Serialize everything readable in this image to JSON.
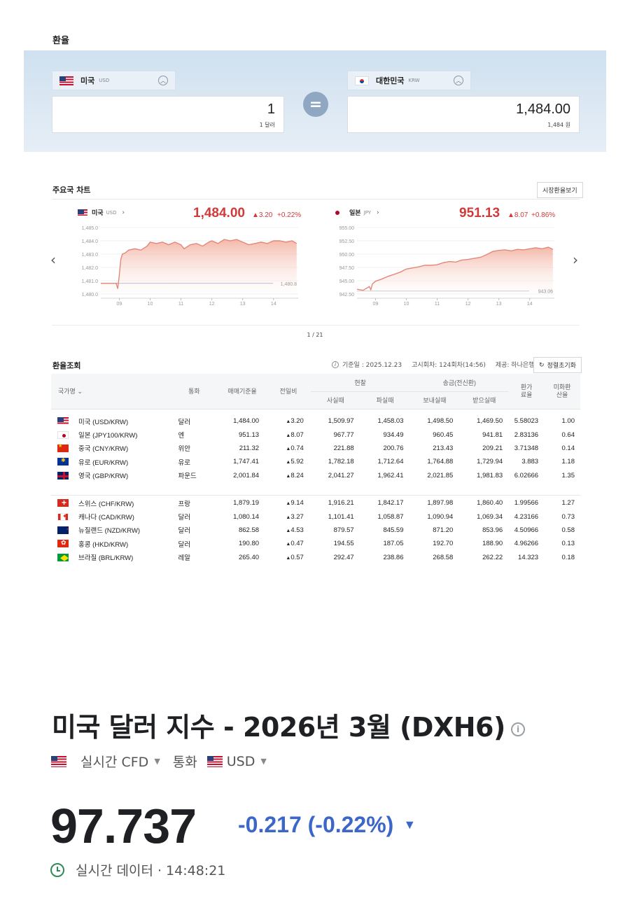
{
  "converter": {
    "title": "환율",
    "from": {
      "country": "미국",
      "code": "USD",
      "amount": "1",
      "amount_text": "1 달러"
    },
    "to": {
      "country": "대한민국",
      "code": "KRW",
      "amount": "1,484.00",
      "amount_text": "1,484 원"
    },
    "equals_icon": "equals-icon",
    "chevron_icon": "chevron-up-icon"
  },
  "charts_section": {
    "title": "주요국 차트",
    "market_button": "시장환율보기",
    "pager": "1 / 21",
    "prev_icon": "chevron-left-icon",
    "next_icon": "chevron-right-icon"
  },
  "chart_data": [
    {
      "type": "area",
      "title": "미국",
      "code": "USD",
      "price": "1,484.00",
      "change": "▲3.20",
      "change_pct": "+0.22%",
      "y_ticks": [
        "1,485.0",
        "1,484.0",
        "1,483.0",
        "1,482.0",
        "1,481.0",
        "1,480.0"
      ],
      "x_ticks": [
        "09",
        "10",
        "11",
        "12",
        "13",
        "14"
      ],
      "ylim": [
        1480.0,
        1485.0
      ],
      "xlim": [
        8.4,
        14.8
      ],
      "reference_label": "1,480.8",
      "reference_value": 1480.8,
      "series": [
        {
          "x": [
            8.4,
            8.9,
            8.95,
            9.0,
            9.05,
            9.1,
            9.2,
            9.3,
            9.5,
            9.7,
            9.9,
            10.0,
            10.2,
            10.4,
            10.6,
            10.8,
            11.0,
            11.1,
            11.3,
            11.5,
            11.7,
            11.9,
            12.0,
            12.2,
            12.4,
            12.6,
            12.8,
            13.0,
            13.2,
            13.4,
            13.6,
            13.8,
            14.0,
            14.2,
            14.4,
            14.6,
            14.75
          ],
          "y": [
            1480.8,
            1480.8,
            1480.4,
            1481.4,
            1482.6,
            1483.0,
            1483.1,
            1483.3,
            1483.4,
            1483.3,
            1483.6,
            1483.9,
            1483.8,
            1483.9,
            1483.7,
            1483.9,
            1483.7,
            1483.4,
            1483.7,
            1483.8,
            1483.6,
            1483.9,
            1484.0,
            1483.8,
            1484.1,
            1484.0,
            1484.1,
            1483.9,
            1483.7,
            1483.8,
            1483.9,
            1483.8,
            1484.0,
            1484.0,
            1483.9,
            1484.0,
            1483.8
          ]
        }
      ]
    },
    {
      "type": "area",
      "title": "일본",
      "code": "JPY",
      "price": "951.13",
      "change": "▲8.07",
      "change_pct": "+0.86%",
      "y_ticks": [
        "955.00",
        "952.50",
        "950.00",
        "947.50",
        "945.00",
        "942.50"
      ],
      "x_ticks": [
        "09",
        "10",
        "11",
        "12",
        "13",
        "14"
      ],
      "ylim": [
        942.5,
        955.0
      ],
      "xlim": [
        8.4,
        14.8
      ],
      "reference_label": "943.06",
      "reference_value": 943.06,
      "series": [
        {
          "x": [
            8.4,
            8.6,
            8.8,
            8.85,
            8.9,
            9.0,
            9.2,
            9.4,
            9.6,
            9.8,
            10.0,
            10.2,
            10.4,
            10.6,
            10.8,
            11.0,
            11.2,
            11.4,
            11.6,
            11.8,
            12.0,
            12.2,
            12.4,
            12.6,
            12.8,
            13.0,
            13.2,
            13.4,
            13.6,
            13.8,
            14.0,
            14.2,
            14.4,
            14.6,
            14.75
          ],
          "y": [
            943.4,
            943.2,
            943.9,
            943.3,
            944.4,
            944.9,
            945.3,
            945.8,
            946.2,
            946.6,
            947.2,
            947.4,
            947.6,
            947.9,
            947.9,
            948.0,
            948.4,
            948.6,
            948.5,
            948.9,
            949.0,
            949.2,
            949.4,
            949.9,
            950.5,
            950.7,
            950.8,
            950.6,
            950.9,
            950.8,
            951.0,
            951.2,
            951.0,
            951.3,
            950.9
          ]
        }
      ]
    }
  ],
  "table": {
    "title": "환율조회",
    "info_icon": "info-icon",
    "base_date": "기준일 : 2025.12.23",
    "notice": "고시회차: 124회차(14:56)",
    "provider": "제공: 하나은행",
    "refresh_button": "정렬초기화",
    "headers": {
      "country": "국가명",
      "currency": "통화",
      "base_rate": "매매기준율",
      "change": "전일비",
      "cash": "현찰",
      "cash_buy": "사실때",
      "cash_sell": "파실때",
      "wire": "송금(전신환)",
      "wire_send": "보내실때",
      "wire_recv": "받으실때",
      "commission": "환가료율",
      "usd_rate": "미화환산율"
    },
    "group1": [
      {
        "flag": "f-us",
        "name": "미국 (USD/KRW)",
        "currency": "달러",
        "base": "1,484.00",
        "change": "3.20",
        "cash_buy": "1,509.97",
        "cash_sell": "1,458.03",
        "send": "1,498.50",
        "recv": "1,469.50",
        "comm": "5.58023",
        "usd": "1.00"
      },
      {
        "flag": "f-jp",
        "name": "일본 (JPY100/KRW)",
        "currency": "엔",
        "base": "951.13",
        "change": "8.07",
        "cash_buy": "967.77",
        "cash_sell": "934.49",
        "send": "960.45",
        "recv": "941.81",
        "comm": "2.83136",
        "usd": "0.64"
      },
      {
        "flag": "f-cn",
        "name": "중국 (CNY/KRW)",
        "currency": "위안",
        "base": "211.32",
        "change": "0.74",
        "cash_buy": "221.88",
        "cash_sell": "200.76",
        "send": "213.43",
        "recv": "209.21",
        "comm": "3.71348",
        "usd": "0.14"
      },
      {
        "flag": "f-eu",
        "name": "유로 (EUR/KRW)",
        "currency": "유로",
        "base": "1,747.41",
        "change": "5.92",
        "cash_buy": "1,782.18",
        "cash_sell": "1,712.64",
        "send": "1,764.88",
        "recv": "1,729.94",
        "comm": "3.883",
        "usd": "1.18"
      },
      {
        "flag": "f-gb",
        "name": "영국 (GBP/KRW)",
        "currency": "파운드",
        "base": "2,001.84",
        "change": "8.24",
        "cash_buy": "2,041.27",
        "cash_sell": "1,962.41",
        "send": "2,021.85",
        "recv": "1,981.83",
        "comm": "6.02666",
        "usd": "1.35"
      }
    ],
    "group2": [
      {
        "flag": "f-ch",
        "name": "스위스 (CHF/KRW)",
        "currency": "프랑",
        "base": "1,879.19",
        "change": "9.14",
        "cash_buy": "1,916.21",
        "cash_sell": "1,842.17",
        "send": "1,897.98",
        "recv": "1,860.40",
        "comm": "1.99566",
        "usd": "1.27"
      },
      {
        "flag": "f-ca",
        "name": "캐나다 (CAD/KRW)",
        "currency": "달러",
        "base": "1,080.14",
        "change": "3.27",
        "cash_buy": "1,101.41",
        "cash_sell": "1,058.87",
        "send": "1,090.94",
        "recv": "1,069.34",
        "comm": "4.23166",
        "usd": "0.73"
      },
      {
        "flag": "f-nz",
        "name": "뉴질랜드 (NZD/KRW)",
        "currency": "달러",
        "base": "862.58",
        "change": "4.53",
        "cash_buy": "879.57",
        "cash_sell": "845.59",
        "send": "871.20",
        "recv": "853.96",
        "comm": "4.50966",
        "usd": "0.58"
      },
      {
        "flag": "f-hk",
        "name": "홍콩 (HKD/KRW)",
        "currency": "달러",
        "base": "190.80",
        "change": "0.47",
        "cash_buy": "194.55",
        "cash_sell": "187.05",
        "send": "192.70",
        "recv": "188.90",
        "comm": "4.96266",
        "usd": "0.13"
      },
      {
        "flag": "f-br",
        "name": "브라질 (BRL/KRW)",
        "currency": "레알",
        "base": "265.40",
        "change": "0.57",
        "cash_buy": "292.47",
        "cash_sell": "238.86",
        "send": "268.58",
        "recv": "262.22",
        "comm": "14.323",
        "usd": "0.18"
      }
    ]
  },
  "dxy": {
    "title": "미국 달러 지수 - 2026년 3월 (DXH6)",
    "source": "실시간 CFD",
    "currency_label": "통화",
    "currency": "USD",
    "price": "97.737",
    "change": "-0.217 (-0.22%)",
    "time_label": "실시간 데이터 · 14:48:21",
    "change_color": "#3c67c9"
  },
  "colors": {
    "up": "#d03a3a",
    "down": "#3c67c9",
    "area_fill": "#f3b5a5",
    "line": "#e3877a"
  }
}
